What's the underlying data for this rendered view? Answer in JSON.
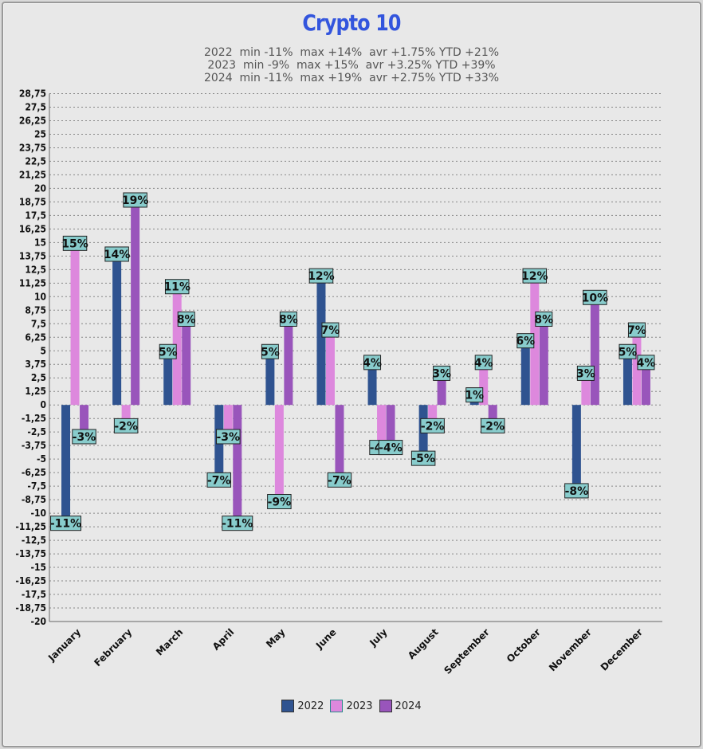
{
  "chart_data": {
    "type": "bar",
    "title": "Crypto 10",
    "subtitle": [
      "2022  min -11%  max +14%  avr +1.75% YTD +21%",
      "2023  min -9%  max +15%  avr +3.25% YTD +39%",
      "2024  min -11%  max +19%  avr +2.75% YTD +33%"
    ],
    "categories": [
      "January",
      "February",
      "March",
      "April",
      "May",
      "June",
      "July",
      "August",
      "September",
      "October",
      "November",
      "December"
    ],
    "series": [
      {
        "name": "2022",
        "color": "#2f5390",
        "values": [
          -11,
          14,
          5,
          -7,
          5,
          12,
          4,
          -5,
          1,
          6,
          -8,
          5
        ]
      },
      {
        "name": "2023",
        "color": "#dd88dd",
        "values": [
          15,
          -2,
          11,
          -3,
          -9,
          7,
          -4,
          -2,
          4,
          12,
          3,
          7
        ]
      },
      {
        "name": "2024",
        "color": "#9955bb",
        "values": [
          -3,
          19,
          8,
          -11,
          8,
          -7,
          -4,
          3,
          -2,
          8,
          10,
          4
        ]
      }
    ],
    "data_labels": [
      [
        "-11%",
        "14%",
        "5%",
        "-7%",
        "5%",
        "12%",
        "4%",
        "-5%",
        "1%",
        "6%",
        "-8%",
        "5%"
      ],
      [
        "15%",
        "-2%",
        "11%",
        "-3%",
        "-9%",
        "7%",
        "-4%",
        "-2%",
        "4%",
        "12%",
        "3%",
        "7%"
      ],
      [
        "-3%",
        "19%",
        "8%",
        "-11%",
        "8%",
        "-7%",
        "-4%",
        "3%",
        "-2%",
        "8%",
        "10%",
        "4%"
      ]
    ],
    "yticks": [
      "28,75",
      "27,5",
      "26,25",
      "25",
      "23,75",
      "22,5",
      "21,25",
      "20",
      "18,75",
      "17,5",
      "16,25",
      "15",
      "13,75",
      "12,5",
      "11,25",
      "10",
      "8,75",
      "7,5",
      "6,25",
      "5",
      "3,75",
      "2,5",
      "1,25",
      "0",
      "-1,25",
      "-2,5",
      "-3,75",
      "-5",
      "-6,25",
      "-7,5",
      "-8,75",
      "-10",
      "-11,25",
      "-12,5",
      "-13,75",
      "-15",
      "-16,25",
      "-17,5",
      "-18,75",
      "-20"
    ],
    "ylim": [
      -20,
      28.75
    ],
    "ytick_step": 1.25,
    "grid": true,
    "legend_position": "bottom",
    "label_box_color": "#88cccc"
  }
}
